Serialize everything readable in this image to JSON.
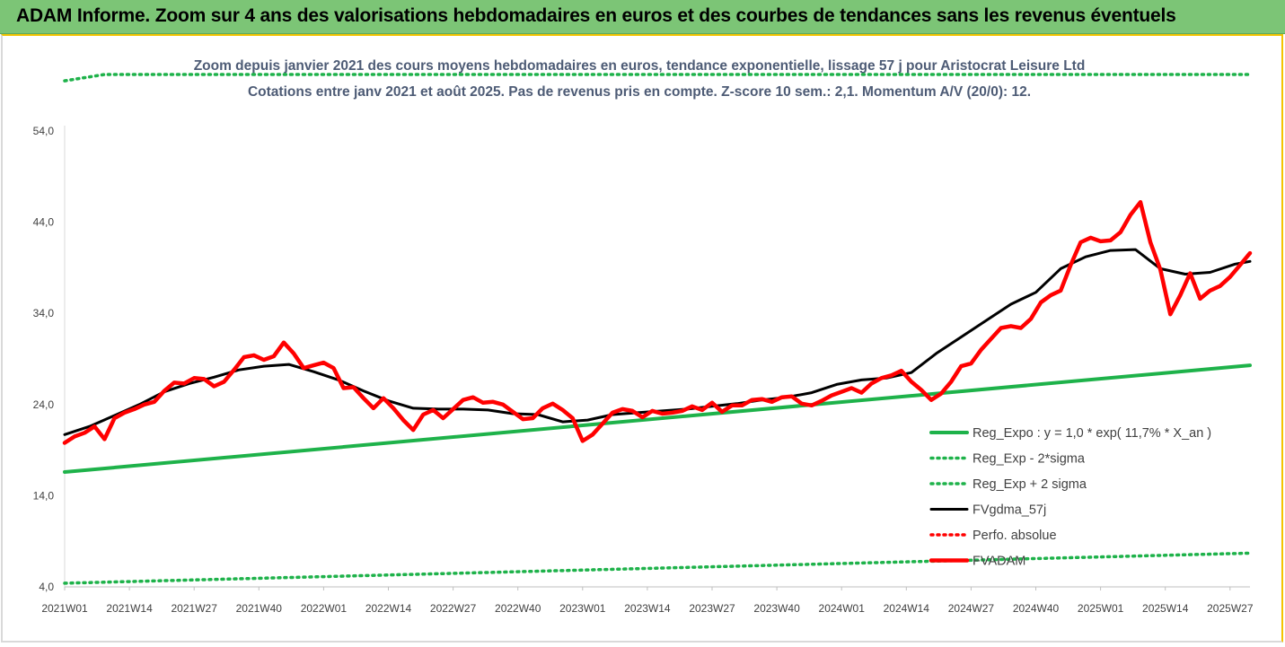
{
  "header": {
    "title": "ADAM Informe. Zoom sur 4 ans des valorisations hebdomadaires en euros et des courbes de tendances sans les revenus éventuels"
  },
  "chart_data": {
    "type": "line",
    "subtitle_lines": [
      "Zoom depuis janvier 2021 des cours moyens hebdomadaires en euros, tendance exponentielle, lissage 57 j pour Aristocrat Leisure Ltd",
      "Cotations entre janv 2021 et août 2025. Pas de revenus pris en compte. Z-score 10 sem.: 2,1. Momentum A/V (20/0): 12."
    ],
    "ylim": [
      4,
      54
    ],
    "yticks": [
      "54,0",
      "44,0",
      "34,0",
      "24,0",
      "14,0",
      "4,0"
    ],
    "ytick_values": [
      54,
      44,
      34,
      24,
      14,
      4
    ],
    "xlim": [
      0,
      238
    ],
    "xticks": [
      "2021W01",
      "2021W14",
      "2021W27",
      "2021W40",
      "2022W01",
      "2022W14",
      "2022W27",
      "2022W40",
      "2023W01",
      "2023W14",
      "2023W27",
      "2023W40",
      "2024W01",
      "2024W14",
      "2024W27",
      "2024W40",
      "2025W01",
      "2025W14",
      "2025W27"
    ],
    "xtick_weeks": [
      0,
      13,
      26,
      39,
      52,
      65,
      78,
      91,
      104,
      117,
      130,
      143,
      156,
      169,
      182,
      195,
      208,
      221,
      234
    ],
    "grid": false,
    "legend_position": "bottom-right",
    "series": [
      {
        "name": "Reg_Expo : y = 1,0 * exp( 11,7% *  X_an )",
        "color": "#1eb24a",
        "style": "solid",
        "x": [
          0,
          238
        ],
        "values": [
          16.6,
          28.3
        ]
      },
      {
        "name": "Reg_Exp - 2*sigma",
        "color": "#1eb24a",
        "style": "dotted",
        "x": [
          0,
          238
        ],
        "values": [
          4.4,
          7.7
        ]
      },
      {
        "name": "Reg_Exp + 2 sigma",
        "color": "#1eb24a",
        "style": "dotted",
        "x": [
          0,
          8,
          24,
          229,
          238
        ],
        "values": [
          59.5,
          60.2,
          60.2,
          60.2,
          60.2
        ]
      },
      {
        "name": "FVgdma_57j",
        "color": "#000000",
        "style": "solid",
        "x": [
          0,
          5,
          10,
          15,
          20,
          25,
          30,
          35,
          40,
          45,
          50,
          55,
          60,
          65,
          70,
          75,
          80,
          85,
          90,
          95,
          100,
          105,
          110,
          115,
          120,
          125,
          130,
          135,
          140,
          145,
          150,
          155,
          160,
          165,
          170,
          175,
          180,
          185,
          190,
          195,
          200,
          205,
          210,
          215,
          220,
          225,
          230,
          235,
          238
        ],
        "values": [
          20.7,
          21.6,
          22.8,
          24.0,
          25.4,
          26.3,
          27.0,
          27.8,
          28.2,
          28.4,
          27.6,
          26.7,
          25.5,
          24.4,
          23.6,
          23.5,
          23.5,
          23.4,
          23.0,
          22.9,
          22.1,
          22.3,
          22.9,
          23.1,
          23.3,
          23.5,
          23.8,
          24.1,
          24.5,
          24.8,
          25.3,
          26.2,
          26.7,
          26.9,
          27.5,
          29.6,
          31.4,
          33.2,
          35.0,
          36.3,
          38.9,
          40.2,
          40.9,
          41.0,
          38.9,
          38.3,
          38.5,
          39.4,
          39.7
        ]
      },
      {
        "name": "Perfo. absolue",
        "color": "#ff0000",
        "style": "dotted",
        "x": [],
        "values": []
      },
      {
        "name": "FVADAM",
        "color": "#ff0000",
        "style": "solid",
        "x": [
          0,
          2,
          4,
          6,
          8,
          10,
          12,
          14,
          16,
          18,
          20,
          22,
          24,
          26,
          28,
          30,
          32,
          34,
          36,
          38,
          40,
          42,
          44,
          46,
          48,
          50,
          52,
          54,
          56,
          58,
          60,
          62,
          64,
          66,
          68,
          70,
          72,
          74,
          76,
          78,
          80,
          82,
          84,
          86,
          88,
          90,
          92,
          94,
          96,
          98,
          100,
          102,
          104,
          106,
          108,
          110,
          112,
          114,
          116,
          118,
          120,
          122,
          124,
          126,
          128,
          130,
          132,
          134,
          136,
          138,
          140,
          142,
          144,
          146,
          148,
          150,
          152,
          154,
          156,
          158,
          160,
          162,
          164,
          166,
          168,
          170,
          172,
          174,
          176,
          178,
          180,
          182,
          184,
          186,
          188,
          190,
          192,
          194,
          196,
          198,
          200,
          202,
          204,
          206,
          208,
          210,
          212,
          214,
          216,
          218,
          220,
          222,
          224,
          226,
          228,
          230,
          232,
          234,
          236,
          238
        ],
        "values": [
          19.8,
          20.5,
          20.9,
          21.6,
          20.2,
          22.5,
          23.1,
          23.5,
          24.0,
          24.3,
          25.5,
          26.4,
          26.3,
          26.9,
          26.8,
          26.0,
          26.5,
          27.8,
          29.2,
          29.4,
          28.9,
          29.3,
          30.8,
          29.6,
          28.0,
          28.3,
          28.6,
          28.0,
          25.8,
          25.9,
          24.7,
          23.6,
          24.7,
          23.6,
          22.3,
          21.2,
          22.9,
          23.4,
          22.5,
          23.5,
          24.5,
          24.8,
          24.2,
          24.3,
          24.0,
          23.2,
          22.4,
          22.5,
          23.6,
          24.1,
          23.4,
          22.5,
          20.0,
          20.7,
          21.9,
          23.1,
          23.5,
          23.3,
          22.6,
          23.3,
          23.0,
          23.1,
          23.3,
          23.8,
          23.4,
          24.2,
          23.2,
          23.9,
          23.9,
          24.5,
          24.6,
          24.3,
          24.8,
          24.9,
          24.1,
          23.9,
          24.4,
          25.0,
          25.4,
          25.8,
          25.3,
          26.3,
          26.9,
          27.2,
          27.7,
          26.5,
          25.6,
          24.5,
          25.2,
          26.5,
          28.2,
          28.5,
          30.0,
          31.2,
          32.4,
          32.6,
          32.4,
          33.4,
          35.2,
          36.0,
          36.5,
          39.3,
          41.8,
          42.3,
          41.9,
          42.0,
          42.9,
          44.8,
          46.2,
          41.8,
          38.8,
          33.9,
          36.0,
          38.4,
          35.6,
          36.5,
          37.0,
          38.0,
          39.3,
          40.6
        ]
      }
    ]
  }
}
